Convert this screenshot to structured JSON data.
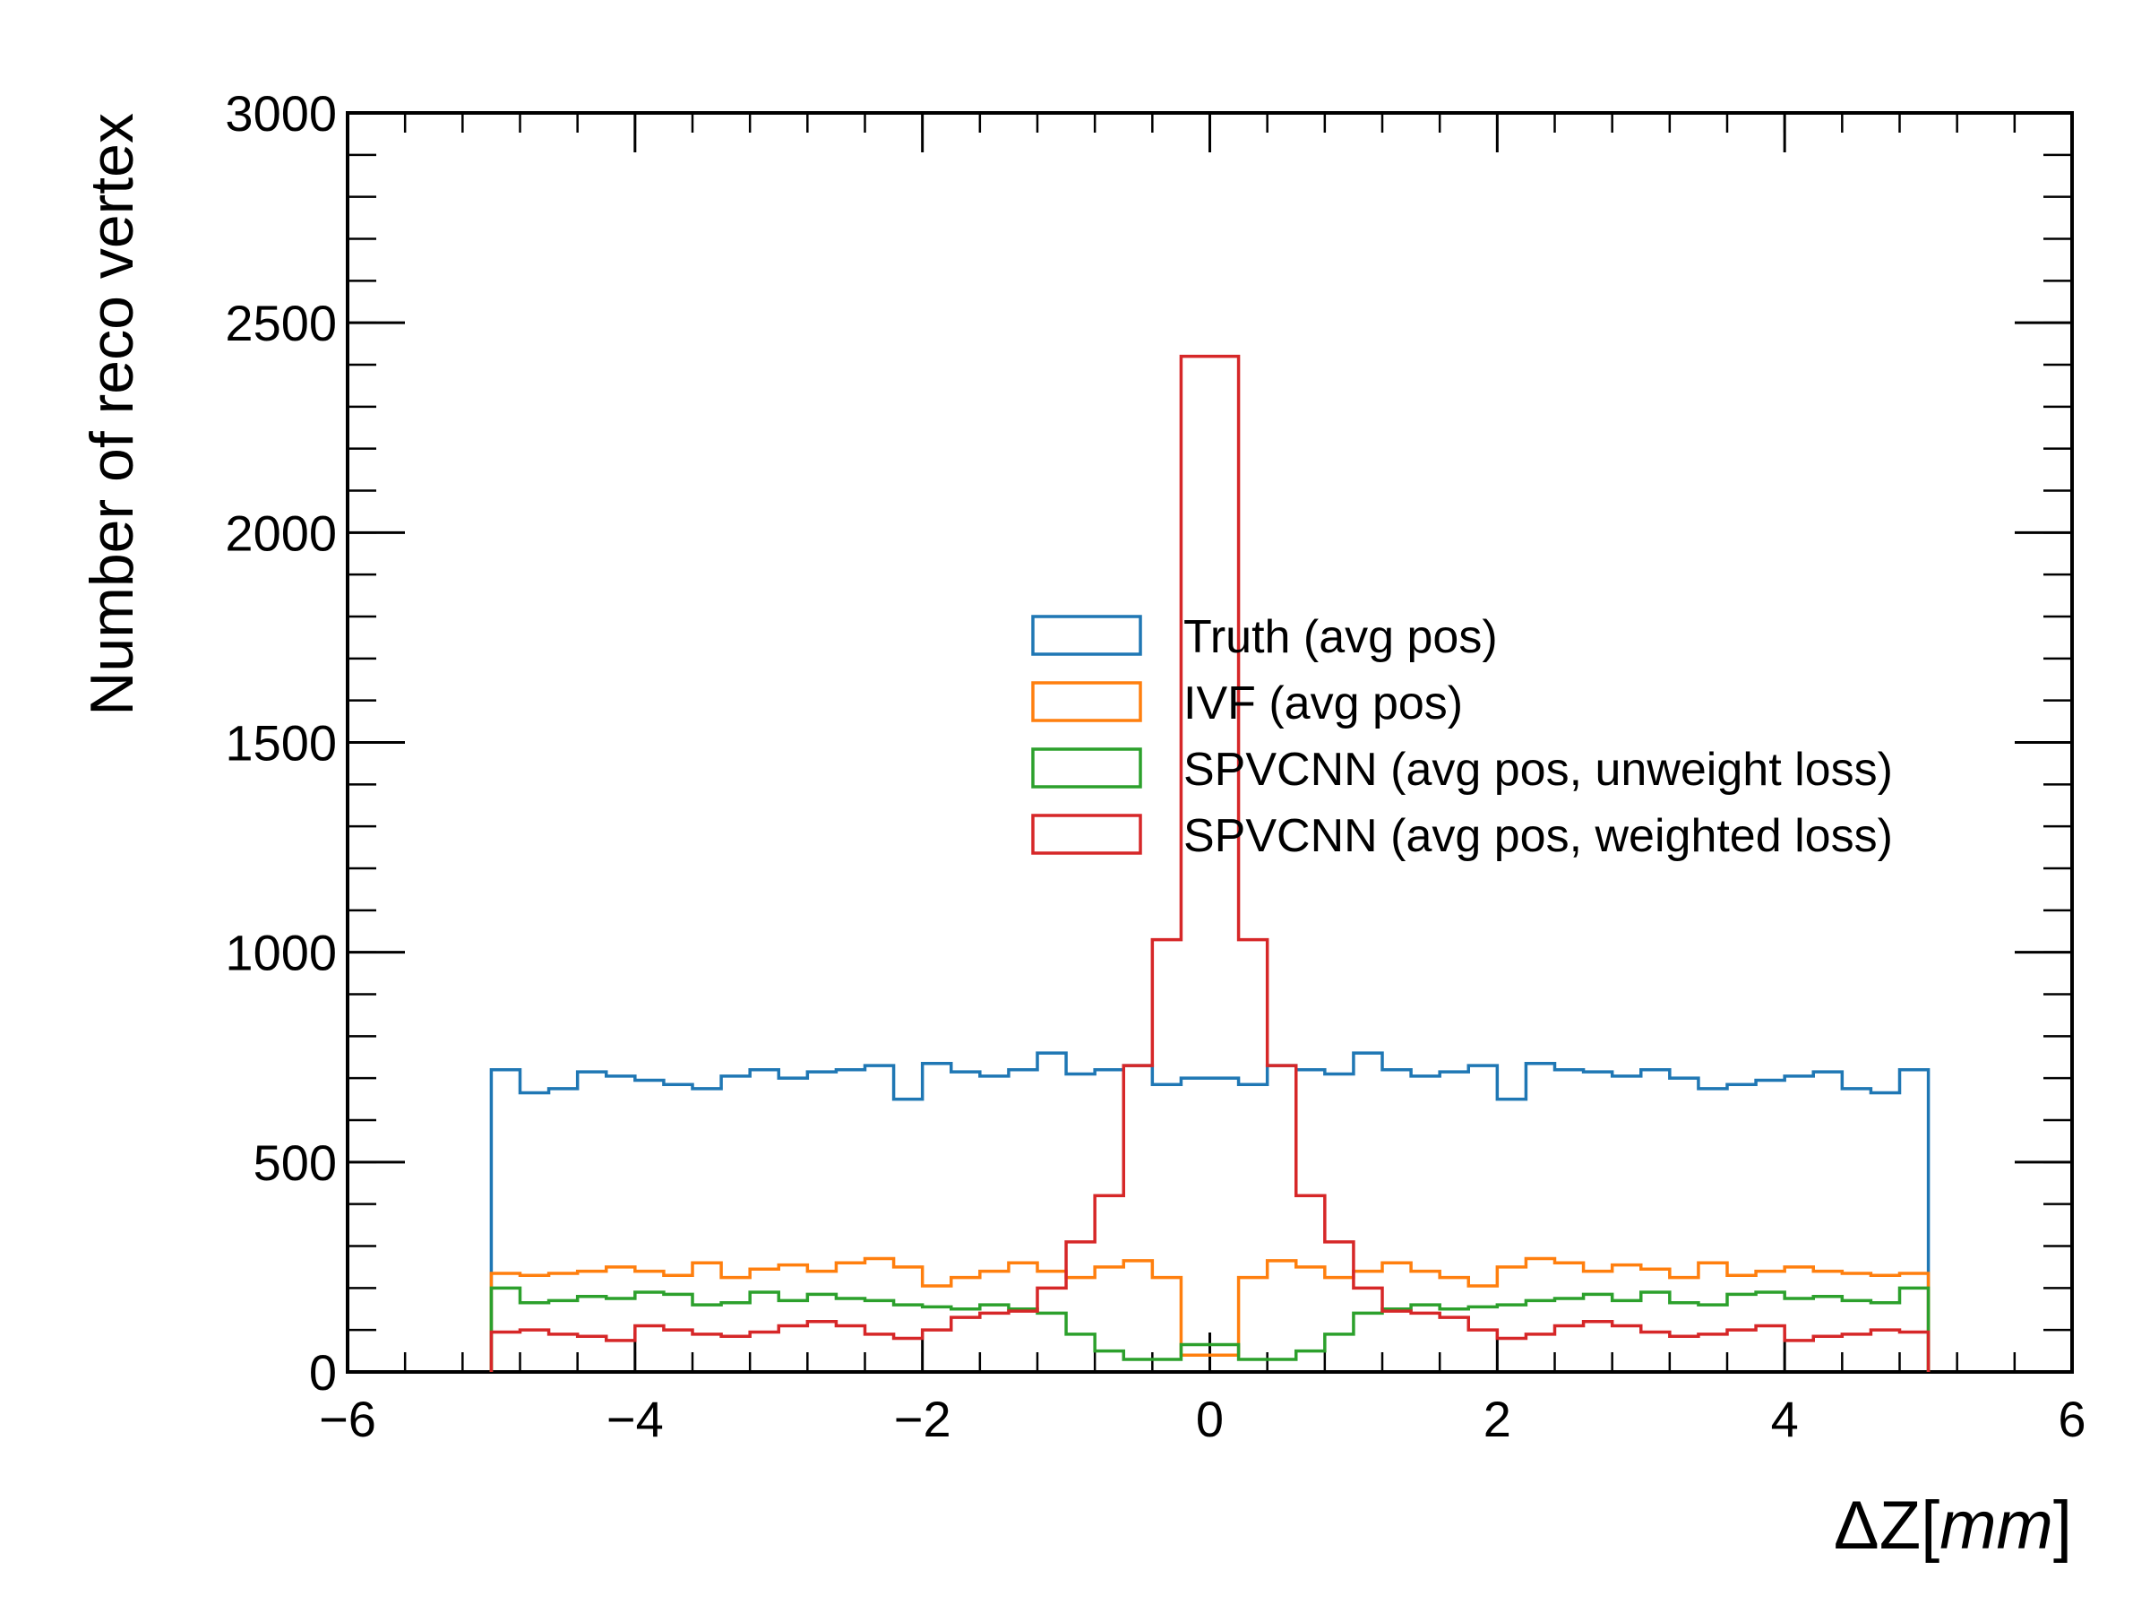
{
  "chart_data": {
    "type": "histogram-step",
    "title": "",
    "xlabel_parts": [
      "ΔZ",
      "[",
      "mm",
      "]"
    ],
    "ylabel": "Number of reco vertex",
    "xlim": [
      -6,
      6
    ],
    "ylim": [
      0,
      3000
    ],
    "x_ticks": [
      -6,
      -4,
      -2,
      0,
      2,
      4,
      6
    ],
    "x_tick_labels": [
      "−6",
      "−4",
      "−2",
      "0",
      "2",
      "4",
      "6"
    ],
    "y_ticks": [
      0,
      500,
      1000,
      1500,
      2000,
      2500,
      3000
    ],
    "y_tick_labels": [
      "0",
      "500",
      "1000",
      "1500",
      "2000",
      "2500",
      "3000"
    ],
    "grid": false,
    "legend_position": "center-right",
    "bins": {
      "start": -5,
      "end": 5,
      "count": 50
    },
    "series": [
      {
        "name": "Truth (avg pos)",
        "color": "#1f77b4",
        "values": [
          720,
          665,
          675,
          715,
          705,
          695,
          685,
          675,
          705,
          720,
          700,
          715,
          720,
          730,
          650,
          735,
          715,
          705,
          720,
          760,
          710,
          720,
          730,
          685,
          700,
          700,
          685,
          730,
          720,
          710,
          760,
          720,
          705,
          715,
          730,
          650,
          735,
          720,
          715,
          705,
          720,
          700,
          675,
          685,
          695,
          705,
          715,
          675,
          665,
          720
        ]
      },
      {
        "name": "IVF (avg pos)",
        "color": "#ff7f0e",
        "values": [
          235,
          230,
          235,
          240,
          250,
          240,
          230,
          260,
          225,
          245,
          255,
          240,
          260,
          270,
          250,
          205,
          225,
          240,
          260,
          240,
          225,
          250,
          265,
          225,
          40,
          40,
          225,
          265,
          250,
          225,
          240,
          260,
          240,
          225,
          205,
          250,
          270,
          260,
          240,
          255,
          245,
          225,
          260,
          230,
          240,
          250,
          240,
          235,
          230,
          235
        ]
      },
      {
        "name": "SPVCNN (avg pos, unweight loss)",
        "color": "#2ca02c",
        "values": [
          200,
          165,
          170,
          180,
          175,
          190,
          185,
          160,
          165,
          190,
          170,
          185,
          175,
          170,
          160,
          155,
          150,
          160,
          150,
          140,
          90,
          50,
          30,
          30,
          65,
          65,
          30,
          30,
          50,
          90,
          140,
          150,
          160,
          150,
          155,
          160,
          170,
          175,
          185,
          170,
          190,
          165,
          160,
          185,
          190,
          175,
          180,
          170,
          165,
          200
        ]
      },
      {
        "name": "SPVCNN (avg pos, weighted loss)",
        "color": "#d62728",
        "values": [
          95,
          100,
          90,
          85,
          75,
          110,
          100,
          90,
          85,
          95,
          110,
          120,
          110,
          90,
          80,
          100,
          130,
          140,
          145,
          200,
          310,
          420,
          730,
          1030,
          2420,
          2420,
          1030,
          730,
          420,
          310,
          200,
          145,
          140,
          130,
          100,
          80,
          90,
          110,
          120,
          110,
          95,
          85,
          90,
          100,
          110,
          75,
          85,
          90,
          100,
          95
        ]
      }
    ]
  }
}
